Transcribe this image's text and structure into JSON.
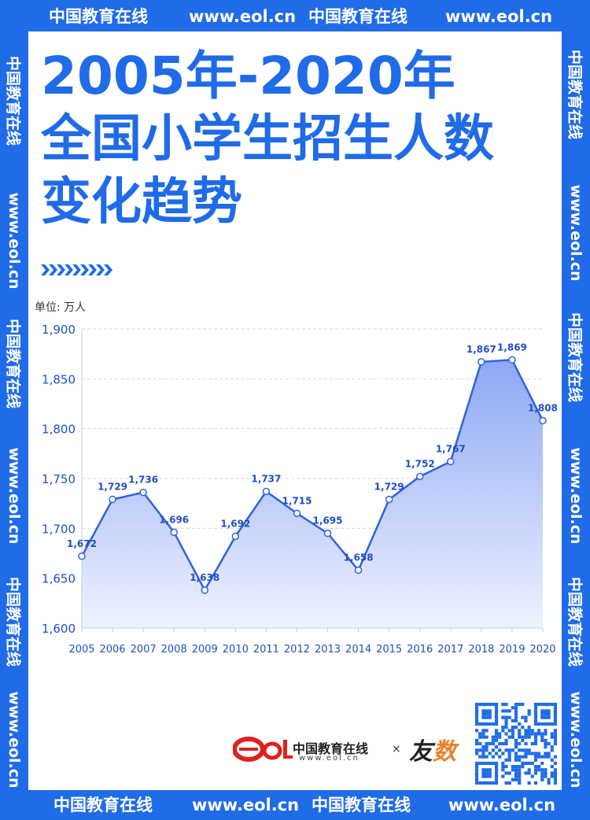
{
  "border_text": {
    "brand": "中国教育在线",
    "url": "www.eol.cn"
  },
  "title": {
    "line1": "2005年-2020年",
    "line2": "全国小学生招生人数",
    "line3": "变化趋势"
  },
  "unit_label": "单位: 万人",
  "footer": {
    "logo_text": "eol",
    "brand_name": "中国教育在线",
    "brand_url": "www.eol.cn",
    "separator": "×",
    "partner_logo": "友数"
  },
  "colors": {
    "primary": "#1f6be8",
    "line": "#2f62e0",
    "area_top": "#8ea8f5",
    "area_bottom": "#eef2fe",
    "logo_red": "#e02020"
  },
  "chart_data": {
    "type": "area",
    "x": [
      "2005",
      "2006",
      "2007",
      "2008",
      "2009",
      "2010",
      "2011",
      "2012",
      "2013",
      "2014",
      "2015",
      "2016",
      "2017",
      "2018",
      "2019",
      "2020"
    ],
    "values": [
      1672,
      1729,
      1736,
      1696,
      1638,
      1692,
      1737,
      1715,
      1695,
      1658,
      1729,
      1752,
      1767,
      1867,
      1869,
      1808
    ],
    "data_labels": [
      "1,672",
      "1,729",
      "1,736",
      "1,696",
      "1,638",
      "1,692",
      "1,737",
      "1,715",
      "1,695",
      "1,658",
      "1,729",
      "1,752",
      "1,767",
      "1,867",
      "1,869",
      "1,808"
    ],
    "y_ticks": [
      1600,
      1650,
      1700,
      1750,
      1800,
      1850,
      1900
    ],
    "y_tick_labels": [
      "1,600",
      "1,650",
      "1,700",
      "1,750",
      "1,800",
      "1,850",
      "1,900"
    ],
    "ylim": [
      1600,
      1900
    ],
    "ylabel": "单位: 万人",
    "grid": true,
    "grid_style": "dashed-horizontal"
  }
}
